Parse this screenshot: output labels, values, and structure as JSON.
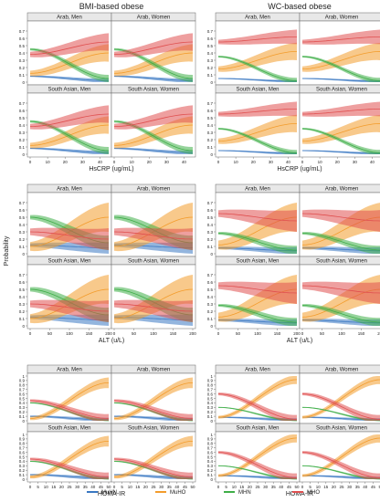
{
  "columns": [
    "BMI-based obese",
    "WC-based obese"
  ],
  "y_label": "Probability",
  "panels": [
    "Arab, Men",
    "Arab, Women",
    "South Asian, Men",
    "South Asian, Women"
  ],
  "colors": {
    "MuHN": "#3a78c2",
    "MuHO": "#f39c2c",
    "MHN": "#3fae48",
    "MHO": "#e05050"
  },
  "legend": [
    "MuHN",
    "MuHO",
    "MHN",
    "MHO"
  ],
  "chart_data": [
    {
      "type": "line",
      "xlabel": "HsCRP (ug/mL)",
      "x_ticks": [
        0,
        10,
        20,
        30,
        40
      ],
      "xlim": [
        0,
        45
      ],
      "ylim": [
        0,
        0.8
      ],
      "y_ticks": [
        0,
        0.1,
        0.2,
        0.3,
        0.4,
        0.5,
        0.6,
        0.7
      ],
      "grid": false,
      "legend_position": "bottom",
      "series": [
        {
          "name": "MuHN",
          "x": [
            0,
            45
          ],
          "y": [
            0.08,
            0.02
          ],
          "bandwidth": 0.03
        },
        {
          "name": "MuHO",
          "x": [
            0,
            45
          ],
          "y": [
            0.12,
            0.4
          ],
          "bandwidth": 0.12
        },
        {
          "name": "MHN",
          "x": [
            0,
            45
          ],
          "y": [
            0.45,
            0.05
          ],
          "bandwidth": 0.05
        },
        {
          "name": "MHO",
          "x": [
            0,
            45
          ],
          "y": [
            0.38,
            0.55
          ],
          "bandwidth": 0.12
        }
      ]
    },
    {
      "type": "line",
      "xlabel": "HsCRP (ug/mL)",
      "x_ticks": [
        0,
        10,
        20,
        30,
        40
      ],
      "xlim": [
        0,
        45
      ],
      "ylim": [
        0,
        0.8
      ],
      "y_ticks": [
        0,
        0.1,
        0.2,
        0.3,
        0.4,
        0.5,
        0.6,
        0.7
      ],
      "grid": false,
      "legend_position": "bottom",
      "series": [
        {
          "name": "MuHN",
          "x": [
            0,
            45
          ],
          "y": [
            0.05,
            0.01
          ],
          "bandwidth": 0.02
        },
        {
          "name": "MuHO",
          "x": [
            0,
            45
          ],
          "y": [
            0.18,
            0.42
          ],
          "bandwidth": 0.12
        },
        {
          "name": "MHN",
          "x": [
            0,
            45
          ],
          "y": [
            0.35,
            0.02
          ],
          "bandwidth": 0.04
        },
        {
          "name": "MHO",
          "x": [
            0,
            45
          ],
          "y": [
            0.55,
            0.62
          ],
          "bandwidth": 0.1
        }
      ]
    },
    {
      "type": "line",
      "xlabel": "ALT (u/L)",
      "x_ticks": [
        0,
        50,
        100,
        150,
        200
      ],
      "xlim": [
        0,
        200
      ],
      "ylim": [
        0,
        0.8
      ],
      "y_ticks": [
        0,
        0.1,
        0.2,
        0.3,
        0.4,
        0.5,
        0.6,
        0.7
      ],
      "grid": false,
      "legend_position": "bottom",
      "series": [
        {
          "name": "MuHN",
          "x": [
            0,
            200
          ],
          "y": [
            0.12,
            0.08
          ],
          "bandwidth": 0.08
        },
        {
          "name": "MuHO",
          "x": [
            0,
            200
          ],
          "y": [
            0.1,
            0.5
          ],
          "bandwidth": 0.2
        },
        {
          "name": "MHN",
          "x": [
            0,
            200
          ],
          "y": [
            0.5,
            0.15
          ],
          "bandwidth": 0.1
        },
        {
          "name": "MHO",
          "x": [
            0,
            200
          ],
          "y": [
            0.3,
            0.2
          ],
          "bandwidth": 0.15
        }
      ]
    },
    {
      "type": "line",
      "xlabel": "ALT (u/L)",
      "x_ticks": [
        0,
        50,
        100,
        150,
        200
      ],
      "xlim": [
        0,
        200
      ],
      "ylim": [
        0,
        0.8
      ],
      "y_ticks": [
        0,
        0.1,
        0.2,
        0.3,
        0.4,
        0.5,
        0.6,
        0.7
      ],
      "grid": false,
      "legend_position": "bottom",
      "series": [
        {
          "name": "MuHN",
          "x": [
            0,
            200
          ],
          "y": [
            0.08,
            0.04
          ],
          "bandwidth": 0.05
        },
        {
          "name": "MuHO",
          "x": [
            0,
            200
          ],
          "y": [
            0.12,
            0.5
          ],
          "bandwidth": 0.2
        },
        {
          "name": "MHN",
          "x": [
            0,
            200
          ],
          "y": [
            0.28,
            0.05
          ],
          "bandwidth": 0.06
        },
        {
          "name": "MHO",
          "x": [
            0,
            200
          ],
          "y": [
            0.55,
            0.45
          ],
          "bandwidth": 0.15
        }
      ]
    },
    {
      "type": "line",
      "xlabel": "HOMA-IR",
      "x_ticks": [
        0,
        5,
        10,
        15,
        20,
        25,
        30,
        35,
        40,
        45,
        50
      ],
      "xlim": [
        0,
        50
      ],
      "ylim": [
        0,
        1.0
      ],
      "y_ticks": [
        0,
        0.1,
        0.2,
        0.3,
        0.4,
        0.5,
        0.6,
        0.7,
        0.8,
        0.9,
        1.0
      ],
      "grid": false,
      "legend_position": "bottom",
      "series": [
        {
          "name": "MuHN",
          "x": [
            0,
            50
          ],
          "y": [
            0.1,
            0.02
          ],
          "bandwidth": 0.05
        },
        {
          "name": "MuHO",
          "x": [
            0,
            50
          ],
          "y": [
            0.05,
            0.85
          ],
          "bandwidth": 0.12
        },
        {
          "name": "MHN",
          "x": [
            0,
            50
          ],
          "y": [
            0.4,
            0.0
          ],
          "bandwidth": 0.04
        },
        {
          "name": "MHO",
          "x": [
            0,
            50
          ],
          "y": [
            0.45,
            0.05
          ],
          "bandwidth": 0.1
        }
      ]
    },
    {
      "type": "line",
      "xlabel": "HOMA-IR",
      "x_ticks": [
        0,
        5,
        10,
        15,
        20,
        25,
        30,
        35,
        40,
        45,
        50
      ],
      "xlim": [
        0,
        50
      ],
      "ylim": [
        0,
        1.0
      ],
      "y_ticks": [
        0,
        0.1,
        0.2,
        0.3,
        0.4,
        0.5,
        0.6,
        0.7,
        0.8,
        0.9,
        1.0
      ],
      "grid": false,
      "legend_position": "bottom",
      "series": [
        {
          "name": "MuHN",
          "x": [
            0,
            50
          ],
          "y": [
            0.08,
            0.02
          ],
          "bandwidth": 0.04
        },
        {
          "name": "MuHO",
          "x": [
            0,
            50
          ],
          "y": [
            0.08,
            0.92
          ],
          "bandwidth": 0.1
        },
        {
          "name": "MHN",
          "x": [
            0,
            50
          ],
          "y": [
            0.3,
            0.0
          ],
          "bandwidth": 0.03
        },
        {
          "name": "MHO",
          "x": [
            0,
            50
          ],
          "y": [
            0.6,
            0.03
          ],
          "bandwidth": 0.1
        }
      ]
    }
  ]
}
